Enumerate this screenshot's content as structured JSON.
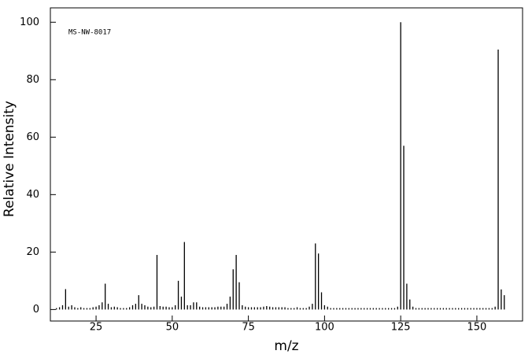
{
  "chart_data": {
    "type": "stem",
    "annotation": "MS-NW-8017",
    "x_label": "m/z",
    "y_label": "Relative Intensity",
    "color": "#000000",
    "xlim": [
      10,
      165
    ],
    "xticks": [
      25,
      50,
      75,
      100,
      125,
      150
    ],
    "ylim": [
      -4,
      105
    ],
    "yticks": [
      0,
      20,
      40,
      60,
      80,
      100
    ],
    "x": [
      12,
      13,
      14,
      15,
      16,
      17,
      18,
      19,
      20,
      21,
      22,
      23,
      24,
      25,
      26,
      27,
      28,
      29,
      30,
      31,
      32,
      33,
      34,
      35,
      36,
      37,
      38,
      39,
      40,
      41,
      42,
      43,
      44,
      45,
      46,
      47,
      48,
      49,
      50,
      51,
      52,
      53,
      54,
      55,
      56,
      57,
      58,
      59,
      60,
      61,
      62,
      63,
      64,
      65,
      66,
      67,
      68,
      69,
      70,
      71,
      72,
      73,
      74,
      75,
      76,
      77,
      78,
      79,
      80,
      81,
      82,
      83,
      84,
      85,
      86,
      87,
      88,
      89,
      90,
      91,
      92,
      93,
      94,
      95,
      96,
      97,
      98,
      99,
      100,
      101,
      102,
      103,
      104,
      105,
      106,
      107,
      108,
      109,
      110,
      111,
      112,
      113,
      114,
      115,
      116,
      117,
      118,
      119,
      120,
      121,
      122,
      123,
      124,
      125,
      126,
      127,
      128,
      129,
      130,
      131,
      132,
      133,
      134,
      135,
      136,
      137,
      138,
      139,
      140,
      141,
      142,
      143,
      144,
      145,
      146,
      147,
      148,
      149,
      150,
      151,
      152,
      153,
      154,
      155,
      156,
      157,
      158,
      159
    ],
    "values": [
      0.5,
      0.8,
      1.5,
      7.1,
      1,
      1.5,
      0.8,
      0.5,
      0.8,
      0.5,
      0.5,
      0.5,
      0.8,
      1,
      1.5,
      2.5,
      9,
      2,
      0.8,
      1,
      0.8,
      0.5,
      0.5,
      0.5,
      0.8,
      1.5,
      2,
      5,
      2,
      1.5,
      1,
      0.8,
      1,
      19,
      1.2,
      1,
      1,
      0.8,
      0.8,
      1.5,
      10,
      4.5,
      23.5,
      1.5,
      1.5,
      2.5,
      2.5,
      1,
      0.8,
      0.8,
      0.8,
      0.8,
      0.8,
      1,
      1,
      1,
      2,
      4.5,
      14,
      19,
      9.5,
      1.5,
      1,
      0.8,
      0.8,
      0.8,
      0.8,
      0.8,
      1,
      1.2,
      1,
      0.8,
      0.8,
      0.8,
      0.8,
      0.8,
      0.5,
      0.5,
      0.5,
      0.8,
      0.5,
      0.5,
      0.5,
      1,
      2,
      23,
      19.5,
      6,
      1.5,
      1,
      0.5,
      0.5,
      0.5,
      0.5,
      0.5,
      0.5,
      0.5,
      0.5,
      0.5,
      0.5,
      0.5,
      0.5,
      0.5,
      0.5,
      0.5,
      0.5,
      0.5,
      0.5,
      0.5,
      0.5,
      0.5,
      0.5,
      1,
      100,
      57,
      9,
      3.5,
      1,
      0.5,
      0.5,
      0.5,
      0.5,
      0.5,
      0.5,
      0.5,
      0.5,
      0.5,
      0.5,
      0.5,
      0.5,
      0.5,
      0.5,
      0.5,
      0.5,
      0.5,
      0.5,
      0.5,
      0.5,
      0.5,
      0.5,
      0.5,
      0.5,
      0.5,
      0.5,
      1,
      90.5,
      7,
      5
    ]
  }
}
